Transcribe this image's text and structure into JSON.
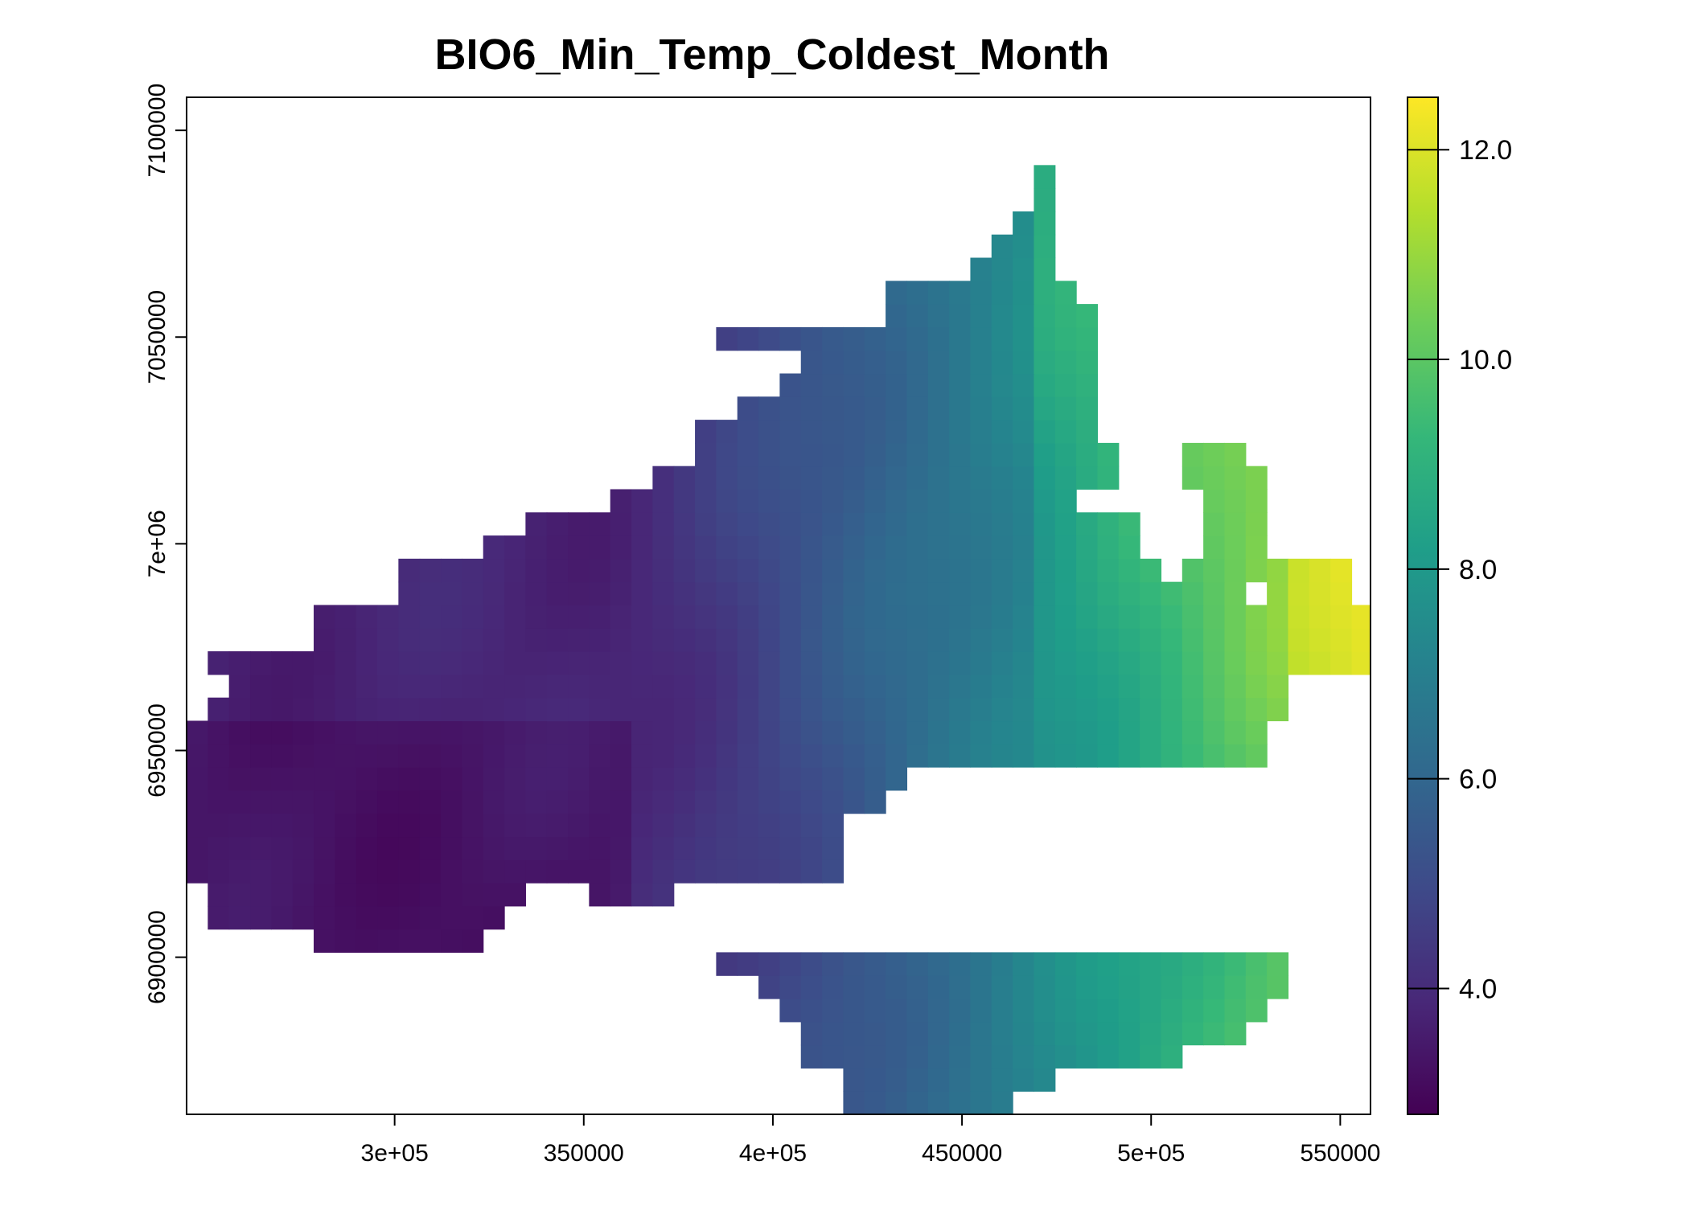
{
  "chart_data": {
    "type": "heatmap",
    "title": "BIO6_Min_Temp_Coldest_Month",
    "xlabel": "",
    "ylabel": "",
    "xlim": [
      245000,
      558000
    ],
    "ylim": [
      6862000,
      7108000
    ],
    "x_ticks": [
      {
        "value": 300000,
        "label": "3e+05"
      },
      {
        "value": 350000,
        "label": "350000"
      },
      {
        "value": 400000,
        "label": "4e+05"
      },
      {
        "value": 450000,
        "label": "450000"
      },
      {
        "value": 500000,
        "label": "5e+05"
      },
      {
        "value": 550000,
        "label": "550000"
      }
    ],
    "y_ticks": [
      {
        "value": 6900000,
        "label": "6900000"
      },
      {
        "value": 6950000,
        "label": "6950000"
      },
      {
        "value": 7000000,
        "label": "7e+06"
      },
      {
        "value": 7050000,
        "label": "7050000"
      },
      {
        "value": 7100000,
        "label": "7100000"
      }
    ],
    "legend": {
      "position": "right",
      "min": 2.8,
      "max": 12.5,
      "ticks": [
        {
          "value": 4.0,
          "label": "4.0"
        },
        {
          "value": 6.0,
          "label": "6.0"
        },
        {
          "value": 8.0,
          "label": "8.0"
        },
        {
          "value": 10.0,
          "label": "10.0"
        },
        {
          "value": 12.0,
          "label": "12.0"
        }
      ]
    },
    "colormap": "viridis",
    "grid": false,
    "raster": {
      "cell_size": 5600,
      "x_origin": 245000,
      "y_origin": 6862000,
      "ncol": 56,
      "nrow": 44,
      "row_extents": [
        [
          [
            31,
            38
          ]
        ],
        [
          [
            31,
            40
          ]
        ],
        [
          [
            29,
            46
          ]
        ],
        [
          [
            29,
            49
          ]
        ],
        [
          [
            28,
            50
          ]
        ],
        [
          [
            27,
            51
          ]
        ],
        [
          [
            25,
            51
          ]
        ],
        [
          [
            6,
            13
          ]
        ],
        [
          [
            1,
            14
          ]
        ],
        [
          [
            1,
            15
          ],
          [
            19,
            20
          ],
          [
            21,
            22
          ]
        ],
        [
          [
            0,
            30
          ]
        ],
        [
          [
            0,
            30
          ]
        ],
        [
          [
            0,
            30
          ]
        ],
        [
          [
            0,
            32
          ]
        ],
        [
          [
            0,
            33
          ]
        ],
        [
          [
            0,
            50
          ]
        ],
        [
          [
            0,
            50
          ]
        ],
        [
          [
            1,
            51
          ]
        ],
        [
          [
            2,
            51
          ]
        ],
        [
          [
            1,
            51
          ],
          [
            52,
            55
          ]
        ],
        [
          [
            6,
            50
          ],
          [
            51,
            55
          ]
        ],
        [
          [
            6,
            55
          ]
        ],
        [
          [
            10,
            45
          ],
          [
            46,
            49
          ],
          [
            51,
            54
          ]
        ],
        [
          [
            10,
            45
          ],
          [
            47,
            48
          ],
          [
            49,
            54
          ]
        ],
        [
          [
            14,
            44
          ],
          [
            48,
            50
          ]
        ],
        [
          [
            16,
            44
          ],
          [
            48,
            50
          ]
        ],
        [
          [
            20,
            41
          ],
          [
            48,
            50
          ]
        ],
        [
          [
            22,
            43
          ],
          [
            47,
            50
          ]
        ],
        [
          [
            24,
            43
          ],
          [
            47,
            49
          ]
        ],
        [
          [
            24,
            42
          ]
        ],
        [
          [
            26,
            42
          ]
        ],
        [
          [
            28,
            42
          ]
        ],
        [
          [
            29,
            42
          ]
        ],
        [
          [
            31,
            24
          ],
          [
            25,
            42
          ]
        ],
        [
          [
            33,
            42
          ]
        ],
        [
          [
            33,
            41
          ]
        ],
        [
          [
            37,
            40
          ]
        ],
        [
          [
            38,
            40
          ]
        ],
        [
          [
            39,
            40
          ]
        ],
        [
          [
            40,
            40
          ]
        ],
        [
          [
            40,
            40
          ]
        ],
        [
          [
            43,
            40
          ]
        ],
        [
          [
            45,
            40
          ]
        ],
        [
          [
            46,
            40
          ]
        ]
      ]
    }
  }
}
